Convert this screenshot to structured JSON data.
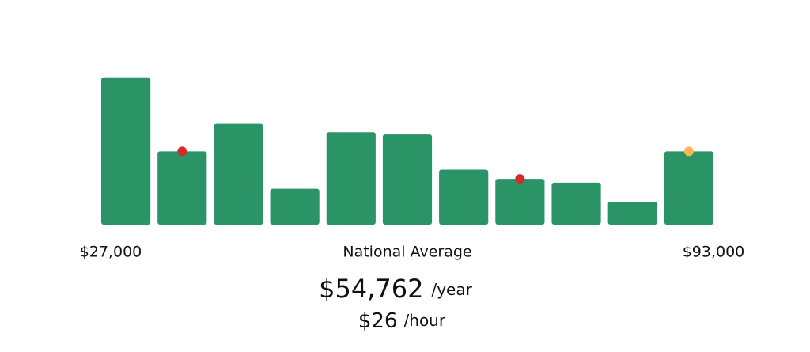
{
  "chart_data": {
    "type": "bar",
    "values": [
      193,
      96,
      132,
      47,
      121,
      118,
      72,
      60,
      55,
      30,
      96
    ],
    "ylim": [
      0,
      200
    ],
    "color": "#2a9467",
    "markers": [
      {
        "bar": 1,
        "color": "#d42a2a"
      },
      {
        "bar": 7,
        "color": "#d42a2a"
      },
      {
        "bar": 10,
        "color": "#f7b557"
      }
    ],
    "min_label": "$27,000",
    "caption": "National Average",
    "max_label": "$93,000",
    "annual": {
      "amount": "$54,762",
      "unit": "/year"
    },
    "hourly": {
      "amount": "$26",
      "unit": "/hour"
    }
  }
}
